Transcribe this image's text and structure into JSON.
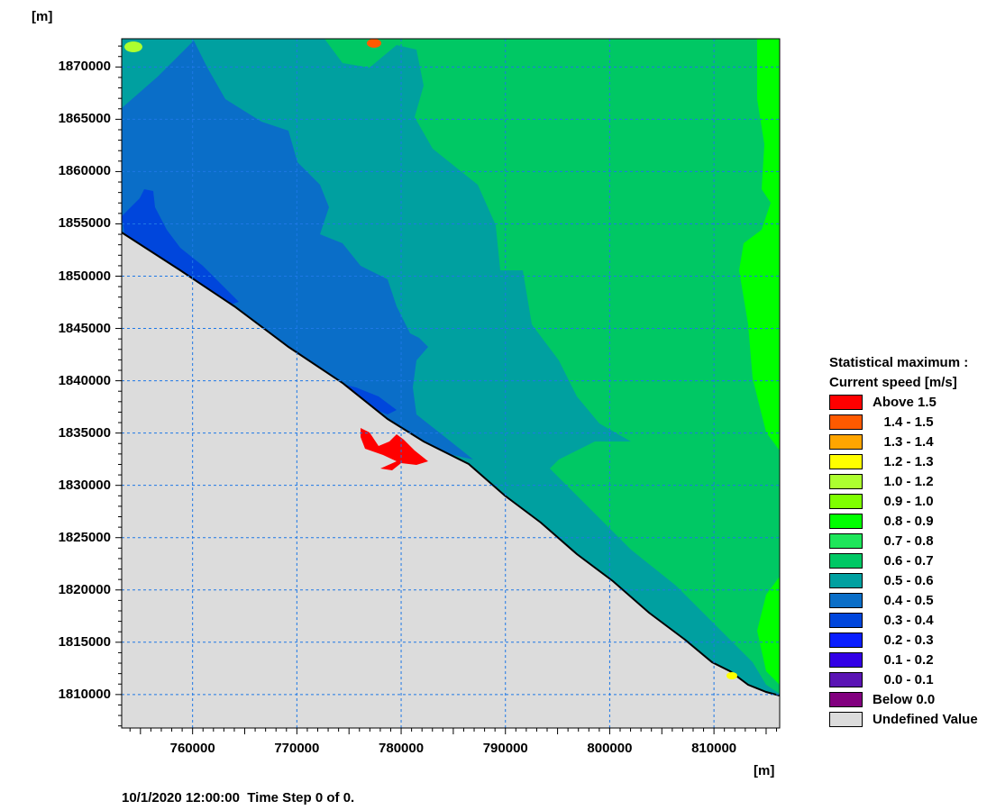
{
  "map": {
    "y_unit": "[m]",
    "x_unit": "[m]",
    "y_ticks": [
      "1870000",
      "1865000",
      "1860000",
      "1855000",
      "1850000",
      "1845000",
      "1840000",
      "1835000",
      "1830000",
      "1825000",
      "1820000",
      "1815000",
      "1810000"
    ],
    "x_ticks": [
      "760000",
      "770000",
      "780000",
      "790000",
      "800000",
      "810000"
    ],
    "x_range": [
      753200,
      816300
    ],
    "y_range": [
      1806800,
      1872700
    ]
  },
  "legend": {
    "title_line1": "Statistical maximum :",
    "title_line2": "Current speed [m/s]",
    "items": [
      {
        "label": "Above 1.5",
        "color": "#ff0000"
      },
      {
        "label": "   1.4 - 1.5",
        "color": "#ff5a00"
      },
      {
        "label": "   1.3 - 1.4",
        "color": "#ffa500"
      },
      {
        "label": "   1.2 - 1.3",
        "color": "#ffff00"
      },
      {
        "label": "   1.0 - 1.2",
        "color": "#adff2f"
      },
      {
        "label": "   0.9 - 1.0",
        "color": "#7fff00"
      },
      {
        "label": "   0.8 - 0.9",
        "color": "#00ff00"
      },
      {
        "label": "   0.7 - 0.8",
        "color": "#1ee65a"
      },
      {
        "label": "   0.6 - 0.7",
        "color": "#00c864"
      },
      {
        "label": "   0.5 - 0.6",
        "color": "#00a0a0"
      },
      {
        "label": "   0.4 - 0.5",
        "color": "#0a6ec8"
      },
      {
        "label": "   0.3 - 0.4",
        "color": "#0046dc"
      },
      {
        "label": "   0.2 - 0.3",
        "color": "#0a1eff"
      },
      {
        "label": "   0.1 - 0.2",
        "color": "#3200e6"
      },
      {
        "label": "   0.0 - 0.1",
        "color": "#5a14b4"
      },
      {
        "label": "Below 0.0",
        "color": "#82007f"
      },
      {
        "label": "Undefined Value",
        "color": "#dcdcdc"
      }
    ]
  },
  "footer": {
    "timestamp": "10/1/2020 12:00:00  Time Step 0 of 0."
  }
}
